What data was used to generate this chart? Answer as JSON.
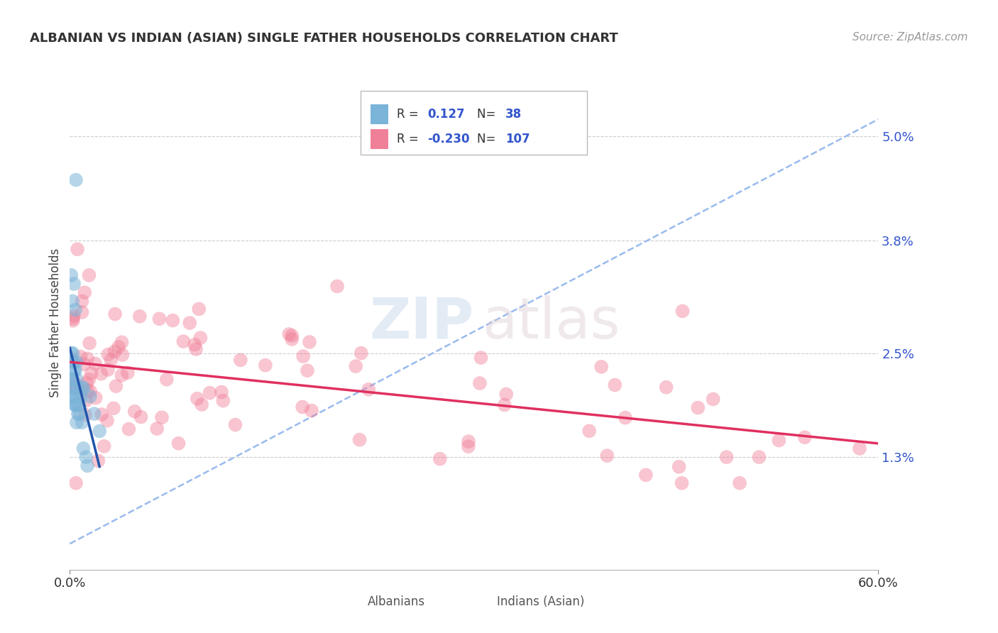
{
  "title": "ALBANIAN VS INDIAN (ASIAN) SINGLE FATHER HOUSEHOLDS CORRELATION CHART",
  "source": "Source: ZipAtlas.com",
  "ylabel": "Single Father Households",
  "x_min": 0.0,
  "x_max": 0.6,
  "y_min": 0.0,
  "y_max": 0.057,
  "y_ticks": [
    0.013,
    0.025,
    0.038,
    0.05
  ],
  "y_tick_labels": [
    "1.3%",
    "2.5%",
    "3.8%",
    "5.0%"
  ],
  "albanians_color": "#7ab4d8",
  "albanians_line_color": "#2255aa",
  "indians_color": "#f08098",
  "indians_line_color": "#e03060",
  "albanians_alpha": 0.55,
  "indians_alpha": 0.45,
  "marker_size": 200,
  "watermark_zip": "ZIP",
  "watermark_atlas": "atlas",
  "background_color": "#ffffff",
  "grid_color": "#cccccc",
  "tick_color": "#3355cc",
  "ref_line_color": "#99bbee",
  "legend_r1": "0.127",
  "legend_n1": "38",
  "legend_r2": "-0.230",
  "legend_n2": "107"
}
